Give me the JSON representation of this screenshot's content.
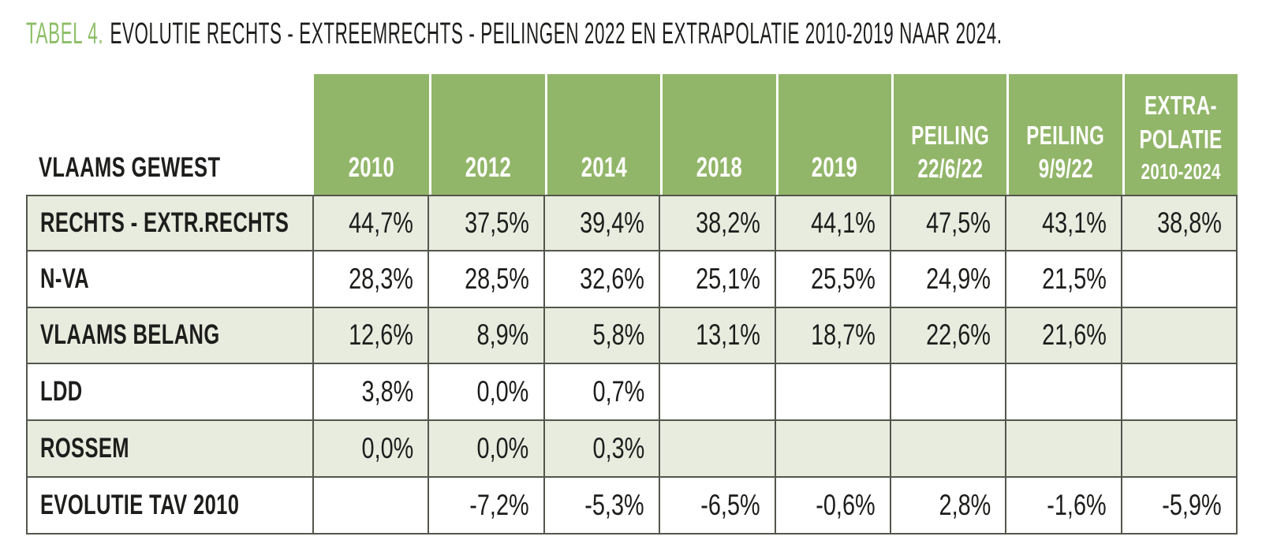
{
  "title": {
    "tag": "TABEL 4.",
    "text": "EVOLUTIE RECHTS - EXTREEMRECHTS - PEILINGEN 2022 EN EXTRAPOLATIE 2010-2019 NAAR 2024."
  },
  "colors": {
    "header_green": "#92b669",
    "row_green": "#e8ecdf",
    "title_green": "#8cbe66",
    "border": "#53564c",
    "text_dark": "#1d1d1b",
    "header_text": "#ffffff"
  },
  "table": {
    "corner_label": "VLAAMS GEWEST",
    "columns": [
      {
        "line1": "2010"
      },
      {
        "line1": "2012"
      },
      {
        "line1": "2014"
      },
      {
        "line1": "2018"
      },
      {
        "line1": "2019"
      },
      {
        "line1": "PEILING",
        "line2": "22/6/22"
      },
      {
        "line1": "PEILING",
        "line2": "9/9/22"
      },
      {
        "line1": "EXTRA-",
        "line2": "POLATIE",
        "line3": "2010-2024"
      }
    ],
    "rows": [
      {
        "label": "RECHTS - EXTR.RECHTS",
        "values": [
          "44,7%",
          "37,5%",
          "39,4%",
          "38,2%",
          "44,1%",
          "47,5%",
          "43,1%",
          "38,8%"
        ]
      },
      {
        "label": "N-VA",
        "values": [
          "28,3%",
          "28,5%",
          "32,6%",
          "25,1%",
          "25,5%",
          "24,9%",
          "21,5%",
          ""
        ]
      },
      {
        "label": "VLAAMS BELANG",
        "values": [
          "12,6%",
          "8,9%",
          "5,8%",
          "13,1%",
          "18,7%",
          "22,6%",
          "21,6%",
          ""
        ]
      },
      {
        "label": "LDD",
        "values": [
          "3,8%",
          "0,0%",
          "0,7%",
          "",
          "",
          "",
          "",
          ""
        ]
      },
      {
        "label": "ROSSEM",
        "values": [
          "0,0%",
          "0,0%",
          "0,3%",
          "",
          "",
          "",
          "",
          ""
        ]
      },
      {
        "label": "EVOLUTIE TAV 2010",
        "values": [
          "",
          "-7,2%",
          "-5,3%",
          "-6,5%",
          "-0,6%",
          "2,8%",
          "-1,6%",
          "-5,9%"
        ]
      }
    ]
  }
}
